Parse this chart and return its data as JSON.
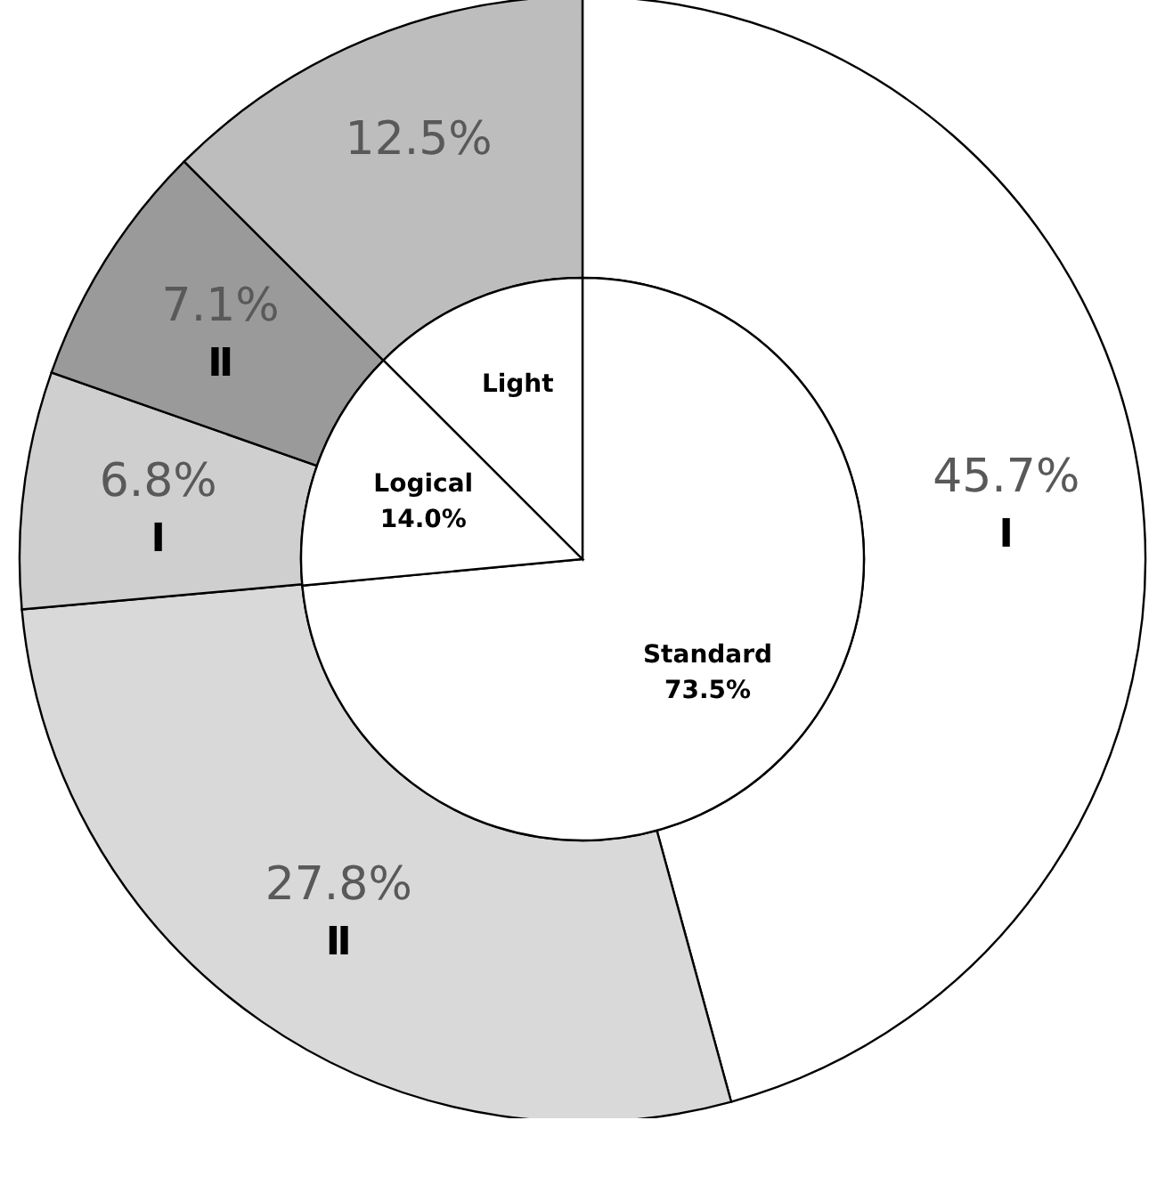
{
  "chart_data": [
    {
      "type": "donut",
      "categories": [
        "Ⅰ",
        "Ⅱ",
        "Ⅰ",
        "Ⅱ",
        null
      ],
      "values": [
        45.7,
        27.8,
        6.8,
        7.1,
        12.5
      ],
      "value_labels": [
        "45.7%",
        "27.8%",
        "6.8%",
        "7.1%",
        "12.5%"
      ],
      "colors": [
        "#ffffff",
        "#d9d9d9",
        "#cfcfcf",
        "#9a9a9a",
        "#bdbdbd"
      ]
    },
    {
      "type": "pie",
      "categories": [
        "Standard",
        "Logical",
        "Light"
      ],
      "values": [
        73.5,
        14.0,
        12.5
      ],
      "value_labels": [
        "73.5%",
        "14.0%",
        null
      ],
      "colors": [
        "#ffffff",
        "#ffffff",
        "#ffffff"
      ]
    }
  ]
}
